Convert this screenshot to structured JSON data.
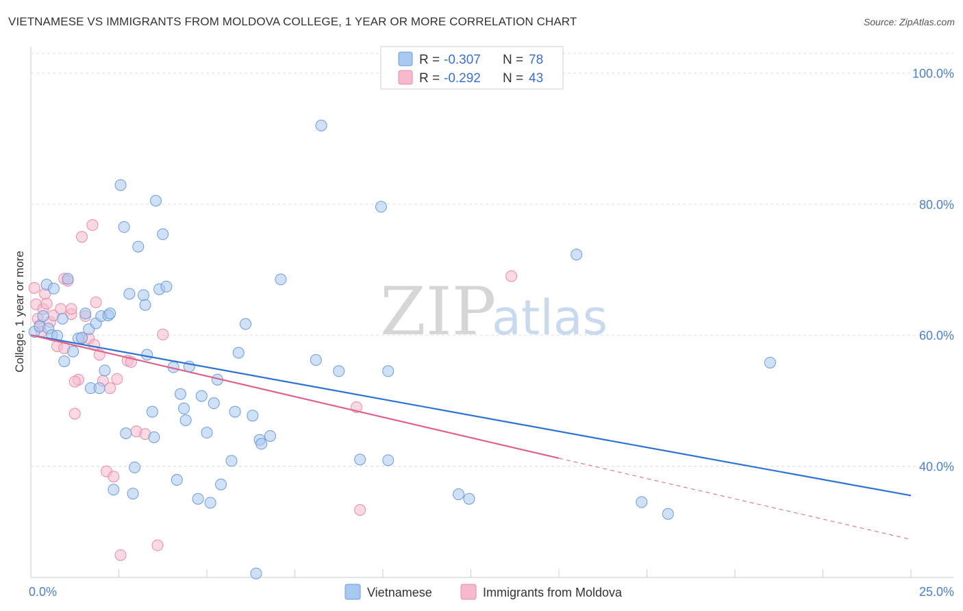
{
  "title": "VIETNAMESE VS IMMIGRANTS FROM MOLDOVA COLLEGE, 1 YEAR OR MORE CORRELATION CHART",
  "source": "Source: ZipAtlas.com",
  "watermark": {
    "zip": "ZIP",
    "atlas": "atlas"
  },
  "colors": {
    "blue_fill": "#a9c8f0",
    "blue_stroke": "#6a9be0",
    "blue_line": "#2a72d4",
    "pink_fill": "#f7b9cc",
    "pink_stroke": "#ea8aa8",
    "pink_line": "#e0608a",
    "grid": "#dddddd",
    "tick_label": "#4a7fcc"
  },
  "legend": {
    "rows": [
      {
        "r_label": "R =",
        "r_value": "-0.307",
        "n_label": "N =",
        "n_value": "78"
      },
      {
        "r_label": "R =",
        "r_value": "-0.292",
        "n_label": "N =",
        "n_value": "43"
      }
    ]
  },
  "bottom_legend": [
    "Vietnamese",
    "Immigrants from Moldova"
  ],
  "chart_data": {
    "type": "scatter",
    "title": "VIETNAMESE VS IMMIGRANTS FROM MOLDOVA COLLEGE, 1 YEAR OR MORE CORRELATION CHART",
    "xlabel": "",
    "ylabel": "College, 1 year or more",
    "xlim": [
      0,
      25
    ],
    "ylim": [
      23,
      103
    ],
    "x_tick_labels": [
      "0.0%",
      "25.0%"
    ],
    "y_ticks": [
      40,
      60,
      80,
      100
    ],
    "y_tick_labels": [
      "40.0%",
      "60.0%",
      "80.0%",
      "100.0%"
    ],
    "legend_position": "top-center",
    "series": [
      {
        "name": "Vietnamese",
        "points": [
          [
            0.1,
            60.5
          ],
          [
            0.25,
            61.3
          ],
          [
            0.35,
            62.9
          ],
          [
            0.45,
            67.7
          ],
          [
            0.5,
            61.0
          ],
          [
            0.6,
            60.0
          ],
          [
            0.65,
            67.1
          ],
          [
            0.75,
            59.9
          ],
          [
            0.9,
            62.5
          ],
          [
            1.05,
            68.6
          ],
          [
            0.95,
            56.0
          ],
          [
            1.2,
            57.5
          ],
          [
            1.35,
            59.5
          ],
          [
            1.45,
            59.6
          ],
          [
            1.55,
            63.3
          ],
          [
            1.65,
            60.9
          ],
          [
            1.7,
            51.9
          ],
          [
            1.85,
            61.8
          ],
          [
            1.95,
            51.9
          ],
          [
            2.0,
            62.9
          ],
          [
            2.1,
            54.6
          ],
          [
            2.2,
            63.0
          ],
          [
            2.25,
            63.3
          ],
          [
            2.35,
            36.4
          ],
          [
            2.55,
            82.9
          ],
          [
            2.65,
            76.5
          ],
          [
            2.7,
            45.0
          ],
          [
            2.8,
            66.3
          ],
          [
            2.9,
            35.8
          ],
          [
            2.95,
            39.8
          ],
          [
            3.05,
            73.5
          ],
          [
            3.2,
            66.1
          ],
          [
            3.25,
            64.6
          ],
          [
            3.3,
            57.0
          ],
          [
            3.45,
            48.3
          ],
          [
            3.5,
            44.4
          ],
          [
            3.55,
            80.5
          ],
          [
            3.65,
            67.0
          ],
          [
            3.75,
            75.4
          ],
          [
            3.85,
            67.4
          ],
          [
            4.05,
            55.1
          ],
          [
            4.15,
            37.9
          ],
          [
            4.25,
            51.0
          ],
          [
            4.35,
            48.8
          ],
          [
            4.4,
            47.0
          ],
          [
            4.5,
            55.2
          ],
          [
            4.75,
            35.0
          ],
          [
            4.85,
            50.7
          ],
          [
            5.0,
            45.1
          ],
          [
            5.1,
            34.4
          ],
          [
            5.2,
            49.6
          ],
          [
            5.3,
            53.2
          ],
          [
            5.4,
            37.2
          ],
          [
            5.7,
            40.8
          ],
          [
            5.8,
            48.3
          ],
          [
            5.9,
            57.3
          ],
          [
            6.1,
            61.7
          ],
          [
            6.3,
            47.7
          ],
          [
            6.4,
            23.6
          ],
          [
            6.5,
            44.0
          ],
          [
            6.55,
            43.4
          ],
          [
            6.8,
            44.6
          ],
          [
            7.1,
            68.5
          ],
          [
            8.1,
            56.2
          ],
          [
            8.25,
            92.0
          ],
          [
            8.75,
            54.5
          ],
          [
            9.35,
            41.0
          ],
          [
            9.95,
            79.6
          ],
          [
            10.15,
            54.5
          ],
          [
            10.15,
            40.9
          ],
          [
            12.15,
            35.7
          ],
          [
            12.45,
            35.0
          ],
          [
            15.5,
            72.3
          ],
          [
            17.35,
            34.5
          ],
          [
            18.1,
            32.7
          ],
          [
            21.0,
            55.8
          ]
        ],
        "trend": {
          "x": [
            0,
            25
          ],
          "y": [
            60.0,
            35.5
          ]
        }
      },
      {
        "name": "Immigrants from Moldova",
        "points": [
          [
            0.1,
            67.2
          ],
          [
            0.15,
            64.7
          ],
          [
            0.2,
            62.5
          ],
          [
            0.25,
            61.5
          ],
          [
            0.3,
            60.5
          ],
          [
            0.35,
            64.0
          ],
          [
            0.4,
            66.3
          ],
          [
            0.45,
            64.8
          ],
          [
            0.55,
            62.0
          ],
          [
            0.65,
            63.0
          ],
          [
            0.75,
            58.3
          ],
          [
            0.85,
            64.0
          ],
          [
            0.95,
            68.6
          ],
          [
            1.05,
            68.3
          ],
          [
            1.15,
            63.2
          ],
          [
            1.25,
            48.0
          ],
          [
            1.35,
            53.2
          ],
          [
            1.45,
            59.5
          ],
          [
            1.55,
            62.9
          ],
          [
            1.65,
            59.5
          ],
          [
            1.75,
            76.8
          ],
          [
            1.85,
            65.0
          ],
          [
            1.95,
            57.0
          ],
          [
            2.05,
            53.0
          ],
          [
            2.15,
            39.2
          ],
          [
            2.25,
            51.9
          ],
          [
            2.35,
            38.4
          ],
          [
            2.45,
            53.3
          ],
          [
            2.55,
            26.4
          ],
          [
            2.75,
            56.1
          ],
          [
            2.85,
            55.9
          ],
          [
            3.0,
            45.3
          ],
          [
            3.25,
            44.9
          ],
          [
            3.6,
            27.9
          ],
          [
            3.75,
            60.1
          ],
          [
            1.45,
            75.0
          ],
          [
            1.25,
            52.9
          ],
          [
            0.95,
            58.0
          ],
          [
            1.8,
            58.5
          ],
          [
            9.25,
            49.0
          ],
          [
            9.35,
            33.3
          ],
          [
            13.65,
            69.0
          ],
          [
            1.15,
            64.0
          ]
        ],
        "trend": {
          "x": [
            0,
            15
          ],
          "y": [
            60.0,
            41.2
          ]
        },
        "trend_dashed": {
          "x": [
            15,
            25
          ],
          "y": [
            41.2,
            28.8
          ]
        }
      }
    ]
  }
}
